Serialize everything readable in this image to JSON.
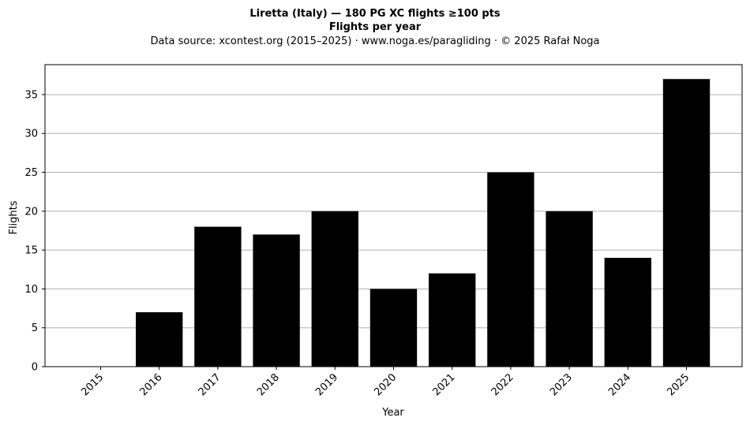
{
  "chart_data": {
    "type": "bar",
    "title": "Liretta (Italy)  —  180 PG XC flights ≥100 pts",
    "title_line2": "Flights per year",
    "subtitle": "Data source: xcontest.org (2015–2025)  ·  www.noga.es/paragliding  ·  © 2025 Rafał Noga",
    "xlabel": "Year",
    "ylabel": "Flights",
    "categories": [
      "2015",
      "2016",
      "2017",
      "2018",
      "2019",
      "2020",
      "2021",
      "2022",
      "2023",
      "2024",
      "2025"
    ],
    "values": [
      0,
      7,
      18,
      17,
      20,
      10,
      12,
      25,
      20,
      14,
      37
    ],
    "ylim": [
      0,
      38.85
    ],
    "yticks": [
      0,
      5,
      10,
      15,
      20,
      25,
      30,
      35
    ],
    "grid": "horizontal",
    "bar_color": "#000000",
    "grid_color": "#b0b0b0"
  }
}
